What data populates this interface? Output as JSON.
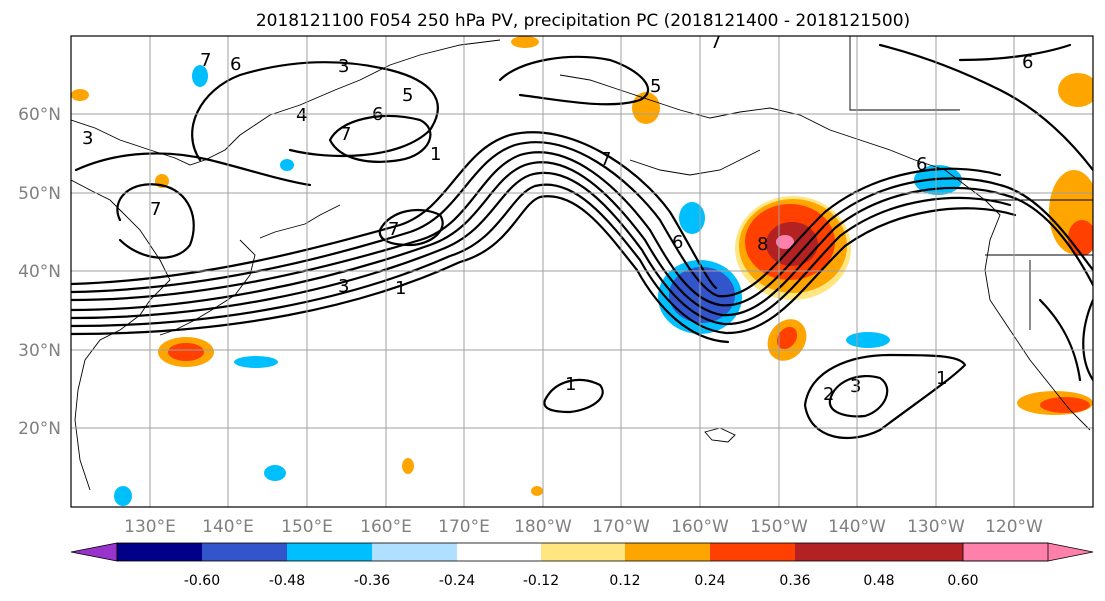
{
  "title": "2018121100 F054 250 hPa PV, precipitation PC (2018121400 - 2018121500)",
  "map": {
    "lon_range": [
      120,
      250
    ],
    "lat_range": [
      10,
      70
    ],
    "lat_ticks": [
      "60°N",
      "50°N",
      "40°N",
      "30°N",
      "20°N"
    ],
    "lon_ticks": [
      "130°E",
      "140°E",
      "150°E",
      "160°E",
      "170°E",
      "180°W",
      "170°W",
      "160°W",
      "150°W",
      "140°W",
      "130°W",
      "120°W"
    ],
    "grid": true,
    "contour_labels": [
      "7",
      "6",
      "3",
      "5",
      "4",
      "3",
      "7",
      "6",
      "5",
      "7",
      "7",
      "7",
      "1",
      "7",
      "3",
      "1",
      "6",
      "8",
      "1",
      "3",
      "2",
      "1",
      "6",
      "6"
    ]
  },
  "colorbar": {
    "colors": [
      "#9933cc",
      "#000088",
      "#3355cc",
      "#00bfff",
      "#b0e0ff",
      "#ffffff",
      "#ffe680",
      "#ffa500",
      "#ff4000",
      "#b22222",
      "#ff80aa"
    ],
    "tick_labels": [
      "-0.60",
      "-0.48",
      "-0.36",
      "-0.24",
      "-0.12",
      "0.12",
      "0.24",
      "0.36",
      "0.48",
      "0.60"
    ],
    "extend": "both"
  }
}
